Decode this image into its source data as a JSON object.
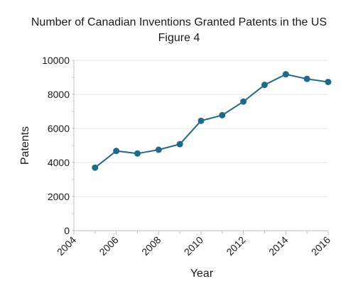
{
  "chart_data": {
    "type": "line",
    "title": "Number of Canadian Inventions Granted Patents in the US",
    "subtitle": "Figure 4",
    "xlabel": "Year",
    "ylabel": "Patents",
    "xlim": [
      2004,
      2016
    ],
    "ylim": [
      0,
      10000
    ],
    "x_ticks": [
      2004,
      2006,
      2008,
      2010,
      2012,
      2014,
      2016
    ],
    "x_tick_labels": [
      "2004",
      "2006",
      "2008",
      "2010",
      "2012",
      "2014",
      "2016"
    ],
    "y_ticks": [
      0,
      2000,
      4000,
      6000,
      8000,
      10000
    ],
    "y_tick_labels": [
      "0",
      "2000",
      "4000",
      "6000",
      "8000",
      "10000"
    ],
    "grid": "horizontal",
    "legend": "none",
    "series": [
      {
        "x": [
          2005,
          2006,
          2007,
          2008,
          2009,
          2010,
          2011,
          2012,
          2013,
          2014,
          2015,
          2016
        ],
        "y": [
          3700,
          4680,
          4530,
          4750,
          5080,
          6450,
          6780,
          7580,
          8560,
          9180,
          8910,
          8730
        ],
        "color": "#1f6a8a"
      }
    ]
  }
}
